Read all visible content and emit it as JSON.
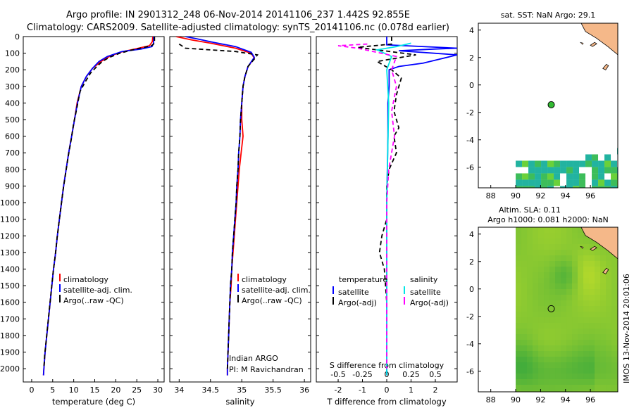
{
  "header": {
    "line1": "Argo profile: IN 2901312_248 06-Nov-2014 20141106_237 1.442S 92.855E",
    "line2": "Climatology: CARS2009. Satellite-adjusted climatology: synTS_20141106.nc (0.078d earlier)"
  },
  "side_stamp": "IMOS 13-Nov-2014 20:01:06",
  "colors": {
    "climatology": "#ff0000",
    "satellite": "#0000ff",
    "argo": "#000000",
    "salinity_satellite": "#00e6e6",
    "salinity_argo": "#ff00ff",
    "land": "#f5b889"
  },
  "chart_data": [
    {
      "id": "temperature",
      "type": "line",
      "xlabel": "temperature (deg C)",
      "xlim": [
        -2,
        31.5
      ],
      "xticks": [
        0,
        5,
        10,
        15,
        20,
        25,
        30
      ],
      "ylim": [
        0,
        2080
      ],
      "yticks": [
        0,
        100,
        200,
        300,
        400,
        500,
        600,
        700,
        800,
        900,
        1000,
        1100,
        1200,
        1300,
        1400,
        1500,
        1600,
        1700,
        1800,
        1900,
        2000
      ],
      "legend": [
        "climatology",
        "satellite-adj. clim.",
        "Argo(..raw -QC)"
      ],
      "series": [
        {
          "name": "climatology",
          "color": "#ff0000",
          "dash": "",
          "points": [
            [
              28.8,
              0
            ],
            [
              28.7,
              30
            ],
            [
              28.0,
              55
            ],
            [
              24.5,
              75
            ],
            [
              21.0,
              95
            ],
            [
              18.5,
              120
            ],
            [
              16.5,
              150
            ],
            [
              14.5,
              190
            ],
            [
              13.0,
              240
            ],
            [
              11.8,
              300
            ],
            [
              10.8,
              400
            ],
            [
              10.2,
              500
            ],
            [
              9.5,
              600
            ],
            [
              8.8,
              700
            ],
            [
              8.2,
              800
            ],
            [
              7.6,
              900
            ],
            [
              7.1,
              1000
            ],
            [
              6.6,
              1100
            ],
            [
              6.1,
              1200
            ],
            [
              5.7,
              1300
            ],
            [
              5.2,
              1400
            ],
            [
              4.8,
              1500
            ],
            [
              4.4,
              1600
            ],
            [
              4.0,
              1700
            ],
            [
              3.6,
              1800
            ],
            [
              3.2,
              1900
            ],
            [
              2.9,
              2000
            ],
            [
              2.8,
              2040
            ]
          ]
        },
        {
          "name": "satellite-adj. clim.",
          "color": "#0000ff",
          "dash": "",
          "points": [
            [
              29.0,
              0
            ],
            [
              29.0,
              40
            ],
            [
              28.6,
              60
            ],
            [
              26.0,
              75
            ],
            [
              21.5,
              90
            ],
            [
              18.0,
              120
            ],
            [
              16.0,
              150
            ],
            [
              14.5,
              190
            ],
            [
              13.0,
              240
            ],
            [
              11.8,
              300
            ],
            [
              10.9,
              400
            ],
            [
              10.2,
              500
            ],
            [
              9.5,
              600
            ],
            [
              8.8,
              700
            ],
            [
              8.2,
              800
            ],
            [
              7.6,
              900
            ],
            [
              7.1,
              1000
            ],
            [
              6.6,
              1100
            ],
            [
              6.1,
              1200
            ],
            [
              5.7,
              1300
            ],
            [
              5.2,
              1400
            ],
            [
              4.8,
              1500
            ],
            [
              4.4,
              1600
            ],
            [
              4.0,
              1700
            ],
            [
              3.6,
              1800
            ],
            [
              3.2,
              1900
            ],
            [
              2.9,
              2000
            ],
            [
              2.8,
              2040
            ]
          ]
        },
        {
          "name": "Argo(..raw -QC)",
          "color": "#000000",
          "dash": "6,4",
          "points": [
            [
              29.2,
              0
            ],
            [
              29.2,
              40
            ],
            [
              28.5,
              55
            ],
            [
              24.0,
              80
            ],
            [
              21.0,
              100
            ],
            [
              18.5,
              125
            ],
            [
              16.8,
              150
            ],
            [
              15.5,
              180
            ],
            [
              14.0,
              220
            ],
            [
              12.8,
              270
            ],
            [
              11.5,
              330
            ],
            [
              10.6,
              450
            ],
            [
              10.0,
              520
            ],
            [
              9.4,
              620
            ],
            [
              8.7,
              720
            ],
            [
              8.1,
              820
            ],
            [
              7.5,
              920
            ],
            [
              7.0,
              1020
            ],
            [
              6.5,
              1120
            ],
            [
              6.0,
              1220
            ],
            [
              5.6,
              1320
            ],
            [
              5.1,
              1420
            ],
            [
              4.7,
              1520
            ],
            [
              4.3,
              1620
            ],
            [
              3.9,
              1720
            ],
            [
              3.5,
              1820
            ],
            [
              3.1,
              1920
            ],
            [
              2.9,
              2000
            ]
          ]
        }
      ]
    },
    {
      "id": "salinity",
      "type": "line",
      "xlabel": "salinity",
      "xlim": [
        33.85,
        36.1
      ],
      "xticks": [
        34,
        34.5,
        35,
        35.5,
        36
      ],
      "ylim": [
        0,
        2080
      ],
      "legend": [
        "climatology",
        "satellite-adj. clim.",
        "Argo(..raw -QC)"
      ],
      "annotation": [
        "Indian ARGO",
        "PI: M Ravichandran"
      ],
      "series": [
        {
          "name": "climatology",
          "color": "#ff0000",
          "dash": "",
          "points": [
            [
              33.95,
              0
            ],
            [
              34.2,
              20
            ],
            [
              34.5,
              40
            ],
            [
              34.9,
              70
            ],
            [
              35.15,
              100
            ],
            [
              35.2,
              130
            ],
            [
              35.1,
              180
            ],
            [
              35.05,
              240
            ],
            [
              35.02,
              300
            ],
            [
              35.0,
              400
            ],
            [
              35.0,
              500
            ],
            [
              35.02,
              600
            ],
            [
              34.99,
              700
            ],
            [
              34.96,
              800
            ],
            [
              34.94,
              900
            ],
            [
              34.92,
              1000
            ],
            [
              34.9,
              1100
            ],
            [
              34.88,
              1200
            ],
            [
              34.86,
              1300
            ],
            [
              34.84,
              1400
            ],
            [
              34.83,
              1500
            ],
            [
              34.81,
              1600
            ],
            [
              34.8,
              1700
            ],
            [
              34.79,
              1800
            ],
            [
              34.78,
              1900
            ],
            [
              34.77,
              2000
            ],
            [
              34.77,
              2040
            ]
          ]
        },
        {
          "name": "satellite-adj. clim.",
          "color": "#0000ff",
          "dash": "",
          "points": [
            [
              34.1,
              0
            ],
            [
              34.3,
              15
            ],
            [
              34.55,
              35
            ],
            [
              34.9,
              60
            ],
            [
              35.15,
              95
            ],
            [
              35.2,
              125
            ],
            [
              35.1,
              180
            ],
            [
              35.05,
              240
            ],
            [
              35.02,
              300
            ],
            [
              35.0,
              400
            ],
            [
              34.98,
              500
            ],
            [
              34.97,
              600
            ],
            [
              34.95,
              700
            ],
            [
              34.94,
              800
            ],
            [
              34.92,
              900
            ],
            [
              34.91,
              1000
            ],
            [
              34.89,
              1100
            ],
            [
              34.87,
              1200
            ],
            [
              34.85,
              1300
            ],
            [
              34.84,
              1400
            ],
            [
              34.82,
              1500
            ],
            [
              34.81,
              1600
            ],
            [
              34.8,
              1700
            ],
            [
              34.79,
              1800
            ],
            [
              34.78,
              1900
            ],
            [
              34.77,
              2000
            ],
            [
              34.77,
              2040
            ]
          ]
        },
        {
          "name": "Argo(..raw -QC)",
          "color": "#000000",
          "dash": "6,4",
          "points": [
            [
              34.0,
              45
            ],
            [
              34.1,
              70
            ],
            [
              34.5,
              80
            ],
            [
              34.9,
              90
            ],
            [
              35.25,
              110
            ],
            [
              35.2,
              135
            ],
            [
              35.1,
              180
            ],
            [
              35.05,
              240
            ],
            [
              35.02,
              300
            ],
            [
              35.0,
              400
            ],
            [
              34.98,
              500
            ],
            [
              34.97,
              600
            ],
            [
              34.95,
              700
            ],
            [
              34.94,
              800
            ],
            [
              34.92,
              900
            ],
            [
              34.91,
              1000
            ],
            [
              34.89,
              1100
            ],
            [
              34.87,
              1200
            ],
            [
              34.85,
              1300
            ],
            [
              34.84,
              1400
            ],
            [
              34.82,
              1500
            ],
            [
              34.81,
              1600
            ],
            [
              34.8,
              1700
            ],
            [
              34.79,
              1800
            ],
            [
              34.78,
              1900
            ],
            [
              34.77,
              2000
            ]
          ]
        }
      ]
    },
    {
      "id": "differences",
      "type": "line",
      "xlabel": "T difference from climatology",
      "xlim": [
        -2.9,
        2.9
      ],
      "xticks": [
        -2,
        -1,
        0,
        1,
        2
      ],
      "top_label": "S difference from climatology",
      "top_ticks": [
        -0.5,
        -0.25,
        0,
        0.25,
        0.5
      ],
      "ylim": [
        0,
        2080
      ],
      "legend_temperature": [
        "temperature",
        "satellite",
        "Argo(-adj)"
      ],
      "legend_salinity": [
        "salinity",
        "satellite",
        "Argo(-adj)"
      ],
      "series": [
        {
          "name": "temperature satellite",
          "color": "#0000ff",
          "dash": "",
          "points": [
            [
              0,
              0
            ],
            [
              0,
              50
            ],
            [
              2.9,
              70
            ],
            [
              2.0,
              75
            ],
            [
              0.5,
              85
            ],
            [
              2.9,
              110
            ],
            [
              1.5,
              160
            ],
            [
              0.5,
              180
            ],
            [
              0.1,
              200
            ],
            [
              0.1,
              300
            ],
            [
              0.05,
              400
            ],
            [
              0.05,
              600
            ],
            [
              0.0,
              1000
            ],
            [
              0.0,
              2040
            ]
          ]
        },
        {
          "name": "temperature Argo(-adj)",
          "color": "#000000",
          "dash": "6,4",
          "points": [
            [
              0.2,
              0
            ],
            [
              0.2,
              45
            ],
            [
              -1.2,
              65
            ],
            [
              1.2,
              110
            ],
            [
              -0.4,
              150
            ],
            [
              0.2,
              200
            ],
            [
              0.6,
              250
            ],
            [
              0.4,
              350
            ],
            [
              0.3,
              450
            ],
            [
              0.5,
              550
            ],
            [
              0.3,
              600
            ],
            [
              0.4,
              700
            ],
            [
              0.1,
              800
            ],
            [
              0.0,
              900
            ],
            [
              0.0,
              1100
            ],
            [
              -0.2,
              1200
            ],
            [
              -0.3,
              1300
            ],
            [
              -0.1,
              1400
            ],
            [
              0.0,
              1600
            ],
            [
              0.0,
              2000
            ]
          ]
        },
        {
          "name": "salinity satellite",
          "color": "#00e6e6",
          "dash": "",
          "points": [
            [
              0.25,
              40
            ],
            [
              0.1,
              60
            ],
            [
              -0.1,
              80
            ],
            [
              0.05,
              120
            ],
            [
              0.0,
              200
            ],
            [
              0.02,
              400
            ],
            [
              0.0,
              1000
            ],
            [
              0.0,
              2040
            ]
          ]
        },
        {
          "name": "salinity Argo(-adj)",
          "color": "#ff00ff",
          "dash": "6,4",
          "points": [
            [
              -0.2,
              45
            ],
            [
              -0.5,
              55
            ],
            [
              -0.3,
              70
            ],
            [
              0.1,
              120
            ],
            [
              0.05,
              200
            ],
            [
              0.1,
              300
            ],
            [
              0.05,
              450
            ],
            [
              0.08,
              600
            ],
            [
              0.02,
              800
            ],
            [
              0.0,
              1000
            ],
            [
              0.0,
              2000
            ]
          ]
        }
      ]
    },
    {
      "id": "sst_map",
      "type": "map",
      "title": "sat. SST: NaN Argo: 29.1",
      "xlim": [
        87,
        98.2
      ],
      "xticks": [
        88,
        90,
        92,
        94,
        96
      ],
      "ylim": [
        -7.5,
        4.5
      ],
      "yticks": [
        -6,
        -4,
        -2,
        0,
        2,
        4
      ],
      "profile_location": [
        92.855,
        -1.442
      ]
    },
    {
      "id": "sla_map",
      "type": "map",
      "title_line1": "Altim. SLA: 0.11",
      "title_line2": "Argo h1000: 0.081 h2000: NaN",
      "xlim": [
        87,
        98.2
      ],
      "xticks": [
        88,
        90,
        92,
        94,
        96
      ],
      "ylim": [
        -7.5,
        4.5
      ],
      "yticks": [
        -6,
        -4,
        -2,
        0,
        2,
        4
      ],
      "profile_location": [
        92.855,
        -1.442
      ]
    }
  ]
}
